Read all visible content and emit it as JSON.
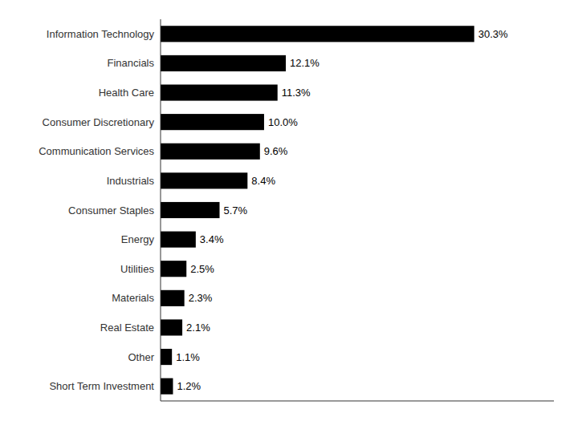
{
  "chart_data": {
    "type": "bar",
    "orientation": "horizontal",
    "categories": [
      "Short Term Investment",
      "Other",
      "Real Estate",
      "Materials",
      "Utilities",
      "Energy",
      "Consumer Staples",
      "Industrials",
      "Communication Services",
      "Consumer Discretionary",
      "Health Care",
      "Financials",
      "Information Technology"
    ],
    "values": [
      1.2,
      1.1,
      2.1,
      2.3,
      2.5,
      3.4,
      5.7,
      8.4,
      9.6,
      10.0,
      11.3,
      12.1,
      30.3
    ],
    "value_labels": [
      "1.2%",
      "1.1%",
      "2.1%",
      "2.3%",
      "2.5%",
      "3.4%",
      "5.7%",
      "8.4%",
      "9.6%",
      "10.0%",
      "11.3%",
      "12.1%",
      "30.3%"
    ],
    "color": "#000000",
    "xlim": [
      0,
      38
    ],
    "data_labels": true,
    "tick_labels": "y",
    "grid": false
  }
}
